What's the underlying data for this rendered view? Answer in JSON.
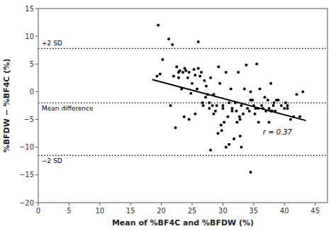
{
  "chart_data": {
    "type": "scatter",
    "title": "",
    "xlabel": "Mean of %BF4C and %BFDW (%)",
    "ylabel": "%BFDW − %BF4C (%)",
    "xlim": [
      0,
      47
    ],
    "ylim": [
      -20,
      15
    ],
    "xticks": [
      0,
      5,
      10,
      15,
      20,
      25,
      30,
      35,
      40,
      45
    ],
    "yticks": [
      {
        "value": -20,
        "label": "−20"
      },
      {
        "value": -15,
        "label": "−15"
      },
      {
        "value": -10,
        "label": "−10"
      },
      {
        "value": -5,
        "label": "−5"
      },
      0,
      5,
      10,
      15
    ],
    "grid": false,
    "x": [
      19.3,
      19.5,
      20.2,
      19.8,
      21.2,
      21.8,
      22.0,
      22.5,
      22.8,
      23.0,
      23.5,
      23.3,
      23.8,
      24.0,
      24.3,
      24.5,
      24.8,
      25.0,
      25.3,
      25.5,
      25.8,
      26.0,
      26.3,
      26.5,
      26.8,
      27.0,
      27.3,
      27.5,
      27.8,
      28.0,
      28.3,
      28.5,
      28.8,
      29.0,
      29.3,
      29.5,
      29.8,
      30.0,
      30.2,
      30.5,
      30.8,
      31.0,
      31.3,
      31.5,
      31.8,
      32.0,
      32.3,
      32.5,
      32.8,
      33.0,
      33.3,
      33.5,
      33.8,
      34.0,
      34.3,
      34.5,
      34.8,
      35.0,
      35.3,
      35.5,
      35.8,
      36.0,
      36.3,
      36.5,
      36.8,
      37.0,
      37.3,
      37.5,
      37.8,
      38.0,
      38.3,
      38.5,
      39.0,
      39.5,
      40.0,
      40.5,
      41.0,
      41.5,
      42.0,
      42.5,
      43.0,
      34.5,
      31.0,
      28.0,
      26.0,
      24.5,
      30.5,
      33.0,
      21.5,
      22.3,
      27.2,
      29.2,
      32.2,
      35.2,
      38.2,
      40.2,
      25.5,
      30.0,
      23.7,
      26.7,
      29.7,
      32.7,
      35.7,
      38.7,
      28.5,
      31.5,
      34.5,
      37.5,
      40.5,
      22.8,
      27.8,
      32.8,
      37.8
    ],
    "series": [
      {
        "color": "#000000",
        "marker": "circle",
        "values": [
          2.8,
          12.0,
          5.8,
          3.2,
          9.5,
          8.5,
          2.8,
          4.5,
          2.5,
          3.8,
          3.5,
          0.5,
          4.2,
          3.8,
          2.5,
          3.5,
          -0.3,
          1.5,
          4.0,
          3.0,
          0.5,
          4.2,
          2.8,
          3.5,
          -2.5,
          2.0,
          1.0,
          -0.5,
          -3.0,
          2.5,
          -2.5,
          -0.5,
          -3.5,
          -2.5,
          4.5,
          1.5,
          -7.0,
          -3.0,
          -5.5,
          3.5,
          -4.5,
          -2.0,
          0.5,
          -3.5,
          -8.5,
          -2.0,
          -5.5,
          3.5,
          -8.0,
          -2.5,
          -4.0,
          0.5,
          4.8,
          -3.0,
          -3.5,
          0.0,
          -1.5,
          -2.5,
          -3.0,
          5.0,
          -5.5,
          0.5,
          -2.5,
          -3.0,
          -1.0,
          -3.5,
          -1.5,
          -3.0,
          1.5,
          -3.5,
          -2.0,
          -3.5,
          -1.5,
          -2.5,
          -3.0,
          -2.5,
          -5.0,
          -4.5,
          -0.5,
          -4.5,
          0.0,
          -14.5,
          -9.5,
          -10.5,
          9.0,
          -5.0,
          -10.0,
          -10.0,
          -2.5,
          -6.5,
          -1.0,
          -7.5,
          -3.5,
          -4.0,
          -2.5,
          -2.0,
          -4.0,
          -2.5,
          -4.5,
          -2.0,
          -6.0,
          -4.5,
          -3.0,
          -1.5,
          -4.0,
          -3.0,
          -1.5,
          -5.5,
          -3.0,
          3.5,
          -2.0,
          -5.0,
          -3.5
        ]
      }
    ],
    "reference_lines": [
      {
        "y": 7.8,
        "label": "+2 SD",
        "color": "#000000",
        "line_style": "dotted"
      },
      {
        "y": -2.0,
        "label": "Mean difference",
        "color": "#000000",
        "line_style": "dotted"
      },
      {
        "y": -11.5,
        "label": "−2 SD",
        "color": "#000000",
        "line_style": "dotted"
      }
    ],
    "regression": {
      "x": [
        18.5,
        43.5
      ],
      "y": [
        2.2,
        -5.2
      ],
      "color": "#000000"
    },
    "annotations": [
      {
        "text": "r = 0.37",
        "x": 36.5,
        "y": -6.5
      }
    ]
  }
}
